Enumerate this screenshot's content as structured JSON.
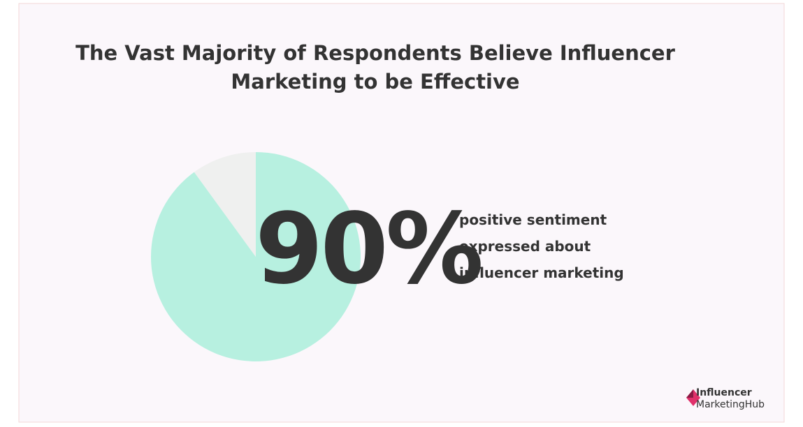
{
  "chart_data": {
    "type": "pie",
    "title": [
      "The Vast Majority of Respondents Believe Influencer",
      "Marketing to be Effective"
    ],
    "values": [
      90,
      10
    ],
    "value_labels": [
      "90%",
      null
    ],
    "colors": [
      "#b7f0e0",
      "#eff0ef"
    ],
    "annotation": [
      "positive sentiment",
      "expressed about",
      "influencer marketing"
    ],
    "brand": [
      "Influencer",
      "MarketingHub"
    ]
  }
}
